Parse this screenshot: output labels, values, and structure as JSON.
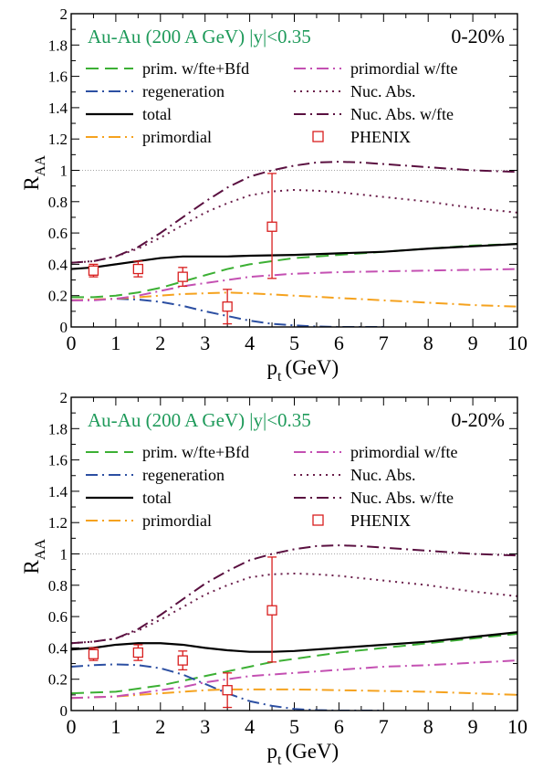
{
  "chart_data": [
    {
      "type": "line",
      "panel": "top",
      "title": "Au-Au (200 A GeV) |y|<0.35",
      "centrality": "0-20%",
      "xlabel": "p",
      "xlabel_sub": "t",
      "xlabel_unit": "(GeV)",
      "ylabel": "R",
      "ylabel_sub": "AA",
      "xlim": [
        0,
        10
      ],
      "ylim": [
        0,
        2
      ],
      "xticks": [
        "0",
        "1",
        "2",
        "3",
        "4",
        "5",
        "6",
        "7",
        "8",
        "9",
        "10"
      ],
      "yticks": [
        "0",
        "0.2",
        "0.4",
        "0.6",
        "0.8",
        "1",
        "1.2",
        "1.4",
        "1.6",
        "1.8",
        "2"
      ],
      "reference_line": 1,
      "series": [
        {
          "name": "prim. w/fte+Bfd",
          "color": "#3cb034",
          "dash": "long-dash",
          "x": [
            0,
            0.5,
            1,
            1.5,
            2,
            2.5,
            3,
            3.5,
            4,
            4.5,
            5,
            5.5,
            6,
            7,
            8,
            9,
            10
          ],
          "y": [
            0.19,
            0.19,
            0.2,
            0.22,
            0.25,
            0.29,
            0.33,
            0.37,
            0.4,
            0.42,
            0.44,
            0.45,
            0.46,
            0.48,
            0.5,
            0.52,
            0.53
          ]
        },
        {
          "name": "regeneration",
          "color": "#2c4fa2",
          "dash": "dash-dot",
          "x": [
            0,
            0.5,
            1,
            1.5,
            2,
            2.5,
            3,
            3.5,
            4,
            4.5,
            5,
            5.5,
            6,
            7
          ],
          "y": [
            0.17,
            0.175,
            0.18,
            0.175,
            0.16,
            0.135,
            0.1,
            0.07,
            0.04,
            0.02,
            0.01,
            0.003,
            0,
            0
          ]
        },
        {
          "name": "total",
          "color": "#000000",
          "dash": "solid",
          "x": [
            0,
            0.5,
            1,
            1.5,
            2,
            2.5,
            3,
            3.5,
            4,
            5,
            6,
            7,
            8,
            9,
            10
          ],
          "y": [
            0.37,
            0.38,
            0.4,
            0.42,
            0.44,
            0.45,
            0.45,
            0.45,
            0.455,
            0.46,
            0.47,
            0.48,
            0.5,
            0.515,
            0.53
          ]
        },
        {
          "name": "primordial",
          "color": "#f5a21e",
          "dash": "dash-dot",
          "x": [
            0,
            0.5,
            1,
            1.5,
            2,
            2.5,
            3,
            3.5,
            4,
            5,
            6,
            7,
            8,
            9,
            10
          ],
          "y": [
            0.17,
            0.175,
            0.18,
            0.19,
            0.2,
            0.21,
            0.215,
            0.22,
            0.215,
            0.2,
            0.185,
            0.17,
            0.155,
            0.14,
            0.13
          ]
        },
        {
          "name": "primordial w/fte",
          "color": "#c450b2",
          "dash": "dash-dot",
          "x": [
            0,
            0.5,
            1,
            1.5,
            2,
            2.5,
            3,
            3.5,
            4,
            4.5,
            5,
            6,
            7,
            8,
            9,
            10
          ],
          "y": [
            0.17,
            0.17,
            0.18,
            0.2,
            0.23,
            0.26,
            0.28,
            0.3,
            0.32,
            0.33,
            0.34,
            0.35,
            0.355,
            0.36,
            0.365,
            0.37
          ]
        },
        {
          "name": "Nuc. Abs.",
          "color": "#6b1f4b",
          "dash": "dotted",
          "x": [
            0,
            0.5,
            1,
            1.5,
            2,
            2.5,
            3,
            3.5,
            4,
            4.5,
            5,
            5.5,
            6,
            7,
            8,
            9,
            10
          ],
          "y": [
            0.41,
            0.42,
            0.45,
            0.5,
            0.57,
            0.65,
            0.73,
            0.79,
            0.84,
            0.865,
            0.875,
            0.87,
            0.86,
            0.83,
            0.8,
            0.76,
            0.73
          ]
        },
        {
          "name": "Nuc. Abs. w/fte",
          "color": "#5a1040",
          "dash": "dash-dot",
          "x": [
            0,
            0.5,
            1,
            1.5,
            2,
            2.5,
            3,
            3.5,
            4,
            4.5,
            5,
            5.5,
            6,
            6.5,
            7,
            8,
            9,
            10
          ],
          "y": [
            0.41,
            0.42,
            0.45,
            0.51,
            0.6,
            0.7,
            0.8,
            0.89,
            0.96,
            1.0,
            1.03,
            1.05,
            1.055,
            1.05,
            1.04,
            1.02,
            1.0,
            0.99
          ]
        }
      ],
      "points": {
        "name": "PHENIX",
        "color": "#d81e1e",
        "x": [
          0.5,
          1.5,
          2.5,
          3.5,
          4.5
        ],
        "y": [
          0.36,
          0.37,
          0.32,
          0.13,
          0.64
        ],
        "err_low": [
          0.04,
          0.05,
          0.06,
          0.11,
          0.33
        ],
        "err_high": [
          0.04,
          0.05,
          0.06,
          0.11,
          0.34
        ]
      }
    },
    {
      "type": "line",
      "panel": "bottom",
      "title": "Au-Au (200 A GeV) |y|<0.35",
      "centrality": "0-20%",
      "xlabel": "p",
      "xlabel_sub": "t",
      "xlabel_unit": "(GeV)",
      "ylabel": "R",
      "ylabel_sub": "AA",
      "xlim": [
        0,
        10
      ],
      "ylim": [
        0,
        2
      ],
      "xticks": [
        "0",
        "1",
        "2",
        "3",
        "4",
        "5",
        "6",
        "7",
        "8",
        "9",
        "10"
      ],
      "yticks": [
        "0",
        "0.2",
        "0.4",
        "0.6",
        "0.8",
        "1",
        "1.2",
        "1.4",
        "1.6",
        "1.8",
        "2"
      ],
      "reference_line": 1,
      "series": [
        {
          "name": "prim. w/fte+Bfd",
          "color": "#3cb034",
          "dash": "long-dash",
          "x": [
            0,
            0.5,
            1,
            1.5,
            2,
            2.5,
            3,
            3.5,
            4,
            4.5,
            5,
            6,
            7,
            8,
            9,
            10
          ],
          "y": [
            0.11,
            0.115,
            0.12,
            0.14,
            0.16,
            0.19,
            0.22,
            0.25,
            0.28,
            0.31,
            0.33,
            0.37,
            0.4,
            0.43,
            0.46,
            0.49
          ]
        },
        {
          "name": "regeneration",
          "color": "#2c4fa2",
          "dash": "dash-dot",
          "x": [
            0,
            0.5,
            1,
            1.5,
            2,
            2.5,
            3,
            3.5,
            4,
            4.5,
            5,
            5.5,
            6,
            7
          ],
          "y": [
            0.28,
            0.29,
            0.295,
            0.29,
            0.27,
            0.23,
            0.17,
            0.11,
            0.06,
            0.03,
            0.01,
            0.003,
            0,
            0
          ]
        },
        {
          "name": "total",
          "color": "#000000",
          "dash": "solid",
          "x": [
            0,
            0.5,
            1,
            1.5,
            2,
            2.5,
            3,
            3.5,
            4,
            4.5,
            5,
            6,
            7,
            8,
            9,
            10
          ],
          "y": [
            0.39,
            0.4,
            0.42,
            0.43,
            0.43,
            0.42,
            0.4,
            0.385,
            0.375,
            0.375,
            0.38,
            0.4,
            0.42,
            0.44,
            0.47,
            0.5
          ]
        },
        {
          "name": "primordial",
          "color": "#f5a21e",
          "dash": "dash-dot",
          "x": [
            0,
            0.5,
            1,
            1.5,
            2,
            2.5,
            3,
            3.5,
            4,
            5,
            6,
            7,
            8,
            9,
            10
          ],
          "y": [
            0.08,
            0.085,
            0.09,
            0.1,
            0.11,
            0.12,
            0.13,
            0.135,
            0.135,
            0.135,
            0.13,
            0.125,
            0.12,
            0.11,
            0.1
          ]
        },
        {
          "name": "primordial w/fte",
          "color": "#c450b2",
          "dash": "dash-dot",
          "x": [
            0,
            0.5,
            1,
            1.5,
            2,
            2.5,
            3,
            3.5,
            4,
            4.5,
            5,
            6,
            7,
            8,
            9,
            10
          ],
          "y": [
            0.08,
            0.085,
            0.09,
            0.11,
            0.13,
            0.15,
            0.18,
            0.2,
            0.22,
            0.23,
            0.24,
            0.26,
            0.28,
            0.29,
            0.305,
            0.32
          ]
        },
        {
          "name": "Nuc. Abs.",
          "color": "#6b1f4b",
          "dash": "dotted",
          "x": [
            0,
            0.5,
            1,
            1.5,
            2,
            2.5,
            3,
            3.5,
            4,
            4.5,
            5,
            5.5,
            6,
            7,
            8,
            9,
            10
          ],
          "y": [
            0.43,
            0.44,
            0.46,
            0.51,
            0.58,
            0.66,
            0.74,
            0.8,
            0.85,
            0.87,
            0.875,
            0.87,
            0.86,
            0.83,
            0.8,
            0.76,
            0.73
          ]
        },
        {
          "name": "Nuc. Abs. w/fte",
          "color": "#5a1040",
          "dash": "dash-dot",
          "x": [
            0,
            0.5,
            1,
            1.5,
            2,
            2.5,
            3,
            3.5,
            4,
            4.5,
            5,
            5.5,
            6,
            6.5,
            7,
            8,
            9,
            10
          ],
          "y": [
            0.43,
            0.44,
            0.46,
            0.52,
            0.61,
            0.71,
            0.81,
            0.89,
            0.96,
            1.0,
            1.03,
            1.05,
            1.055,
            1.05,
            1.04,
            1.02,
            1.0,
            0.99
          ]
        }
      ],
      "points": {
        "name": "PHENIX",
        "color": "#d81e1e",
        "x": [
          0.5,
          1.5,
          2.5,
          3.5,
          4.5
        ],
        "y": [
          0.36,
          0.37,
          0.32,
          0.13,
          0.64
        ],
        "err_low": [
          0.04,
          0.05,
          0.06,
          0.11,
          0.33
        ],
        "err_high": [
          0.04,
          0.05,
          0.06,
          0.11,
          0.34
        ]
      }
    }
  ]
}
